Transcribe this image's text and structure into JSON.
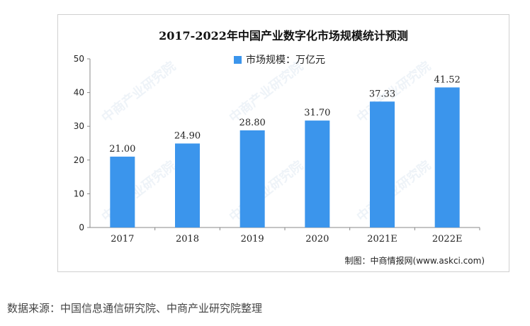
{
  "chart_data": {
    "type": "bar",
    "title": "2017-2022年中国产业数字化市场规模统计预测",
    "categories": [
      "2017",
      "2018",
      "2019",
      "2020",
      "2021E",
      "2022E"
    ],
    "series": [
      {
        "name": "市场规模：万亿元",
        "values": [
          21.0,
          24.9,
          28.8,
          31.7,
          37.33,
          41.52
        ]
      }
    ],
    "data_labels": [
      "21.00",
      "24.90",
      "28.80",
      "31.70",
      "37.33",
      "41.52"
    ],
    "ylim": [
      0,
      50
    ],
    "yticks": [
      0,
      10,
      20,
      30,
      40,
      50
    ],
    "grid": false,
    "legend_position": "top",
    "bar_color": "#3b95ec"
  },
  "credit": "制图：中商情报网(www.askci.com)",
  "source": "数据来源：中国信息通信研究院、中商产业研究院整理",
  "watermark_text": "中商产业研究院"
}
